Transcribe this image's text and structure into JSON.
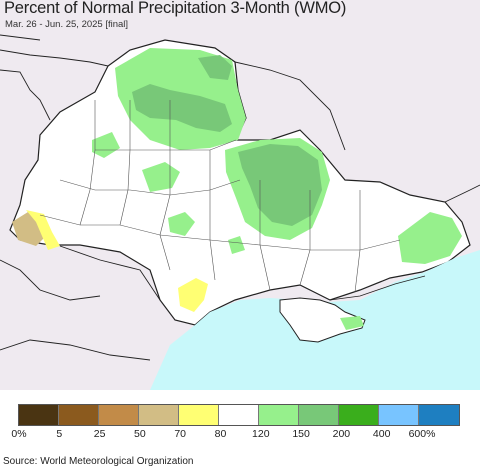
{
  "title": "Percent of Normal Precipitation 3-Month (WMO)",
  "subtitle": "Mar. 26 - Jun. 25, 2025 [final]",
  "source": "Source: World Meteorological Organization",
  "legend": {
    "ticks": [
      "0%",
      "5",
      "25",
      "50",
      "70",
      "80",
      "120",
      "150",
      "200",
      "400",
      "600%"
    ],
    "colors": [
      "#4a3412",
      "#8b5a1e",
      "#c28b48",
      "#d2bd85",
      "#ffff73",
      "#ffffff",
      "#96f08c",
      "#78c878",
      "#3aae1c",
      "#78c4ff",
      "#1e7fc1"
    ]
  },
  "map_colors": {
    "land": "#ffffff",
    "outside": "#efeaf0",
    "sea": "#c8f8fa",
    "green_light": "#96f08c",
    "green_mid": "#78c878",
    "yellow": "#ffff73",
    "tan": "#d2bd85"
  }
}
